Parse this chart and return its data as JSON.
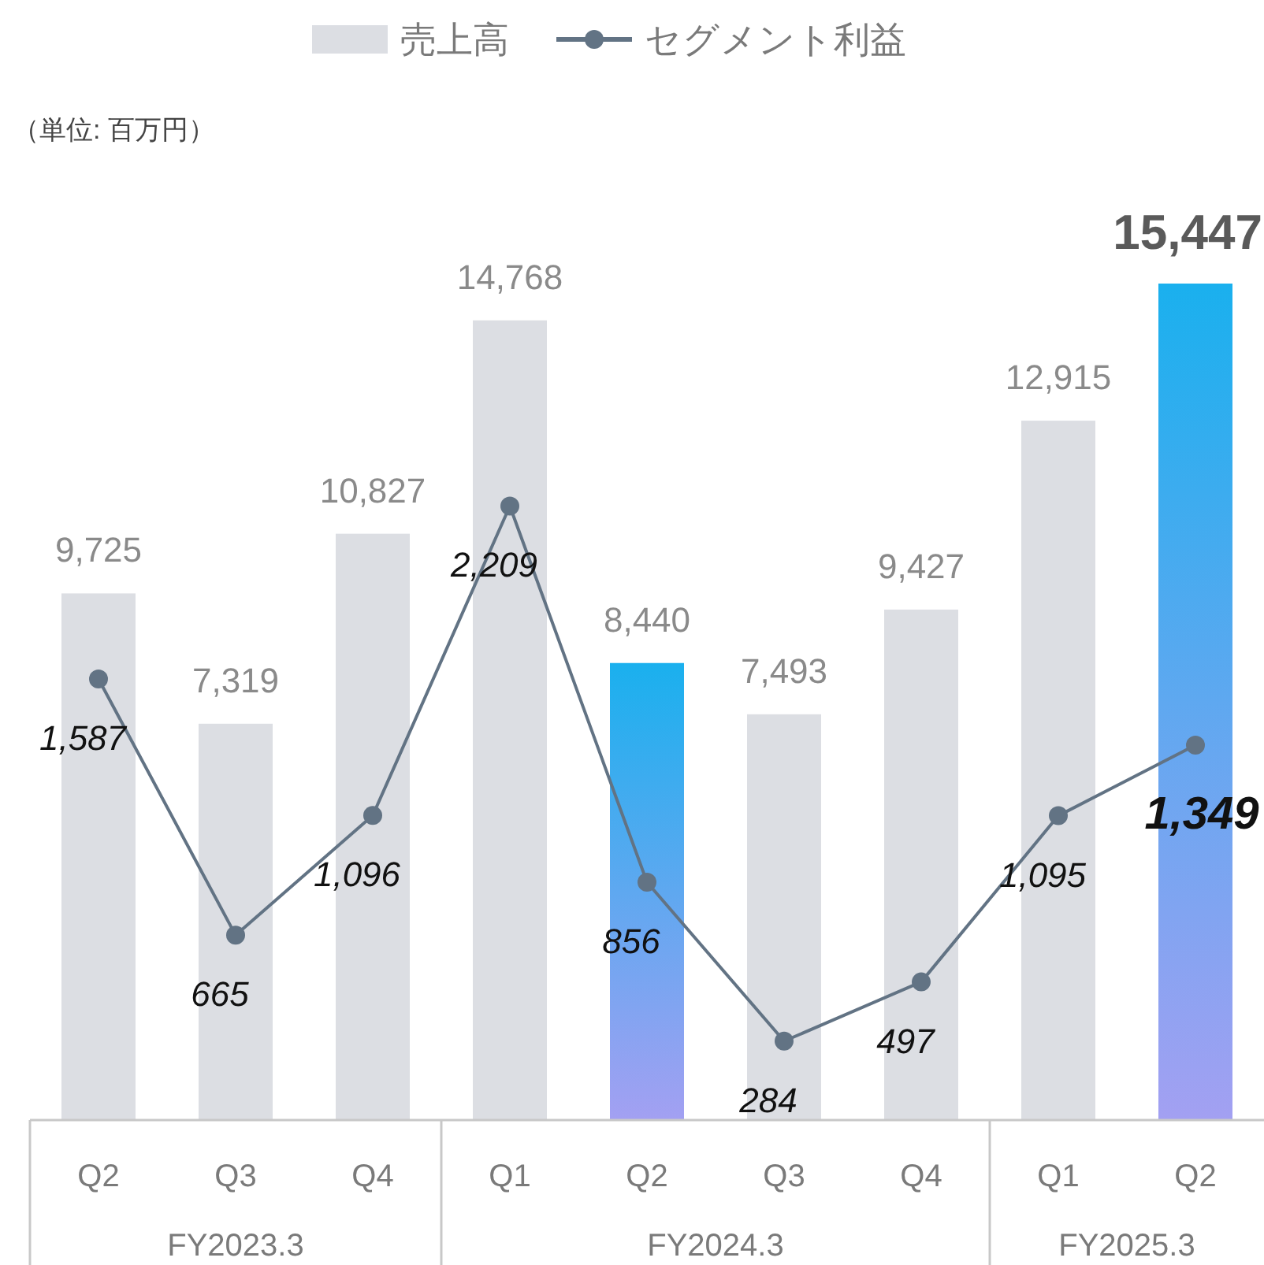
{
  "chart_data": {
    "type": "bar",
    "categories": [
      "Q2",
      "Q3",
      "Q4",
      "Q1",
      "Q2",
      "Q3",
      "Q4",
      "Q1",
      "Q2"
    ],
    "series": [
      {
        "name": "売上高",
        "color": "#dcdee3",
        "colors": [
          "#dcdee3",
          "#dcdee3",
          "#dcdee3",
          "#dcdee3",
          "#1ab0ee",
          "#dcdee3",
          "#dcdee3",
          "#dcdee3",
          "#1ab0ee"
        ],
        "values": [
          9725,
          7319,
          10827,
          14768,
          8440,
          7493,
          9427,
          12915,
          15447
        ],
        "value_labels": [
          "9,725",
          "7,319",
          "10,827",
          "14,768",
          "8,440",
          "7,493",
          "9,427",
          "12,915",
          "15,447"
        ]
      },
      {
        "name": "セグメント利益",
        "type": "line",
        "axis": "y2",
        "color": "#627384",
        "marker": "circle",
        "values": [
          1587,
          665,
          1096,
          2209,
          856,
          284,
          497,
          1095,
          1349
        ],
        "value_labels": [
          "1,587",
          "665",
          "1,096",
          "2,209",
          "856",
          "284",
          "497",
          "1,095",
          "1,349"
        ]
      }
    ],
    "annotations": [
      "（単位: 百万円）",
      "FY2023.3",
      "FY2024.3",
      "FY2025.3"
    ],
    "legend": "top"
  }
}
